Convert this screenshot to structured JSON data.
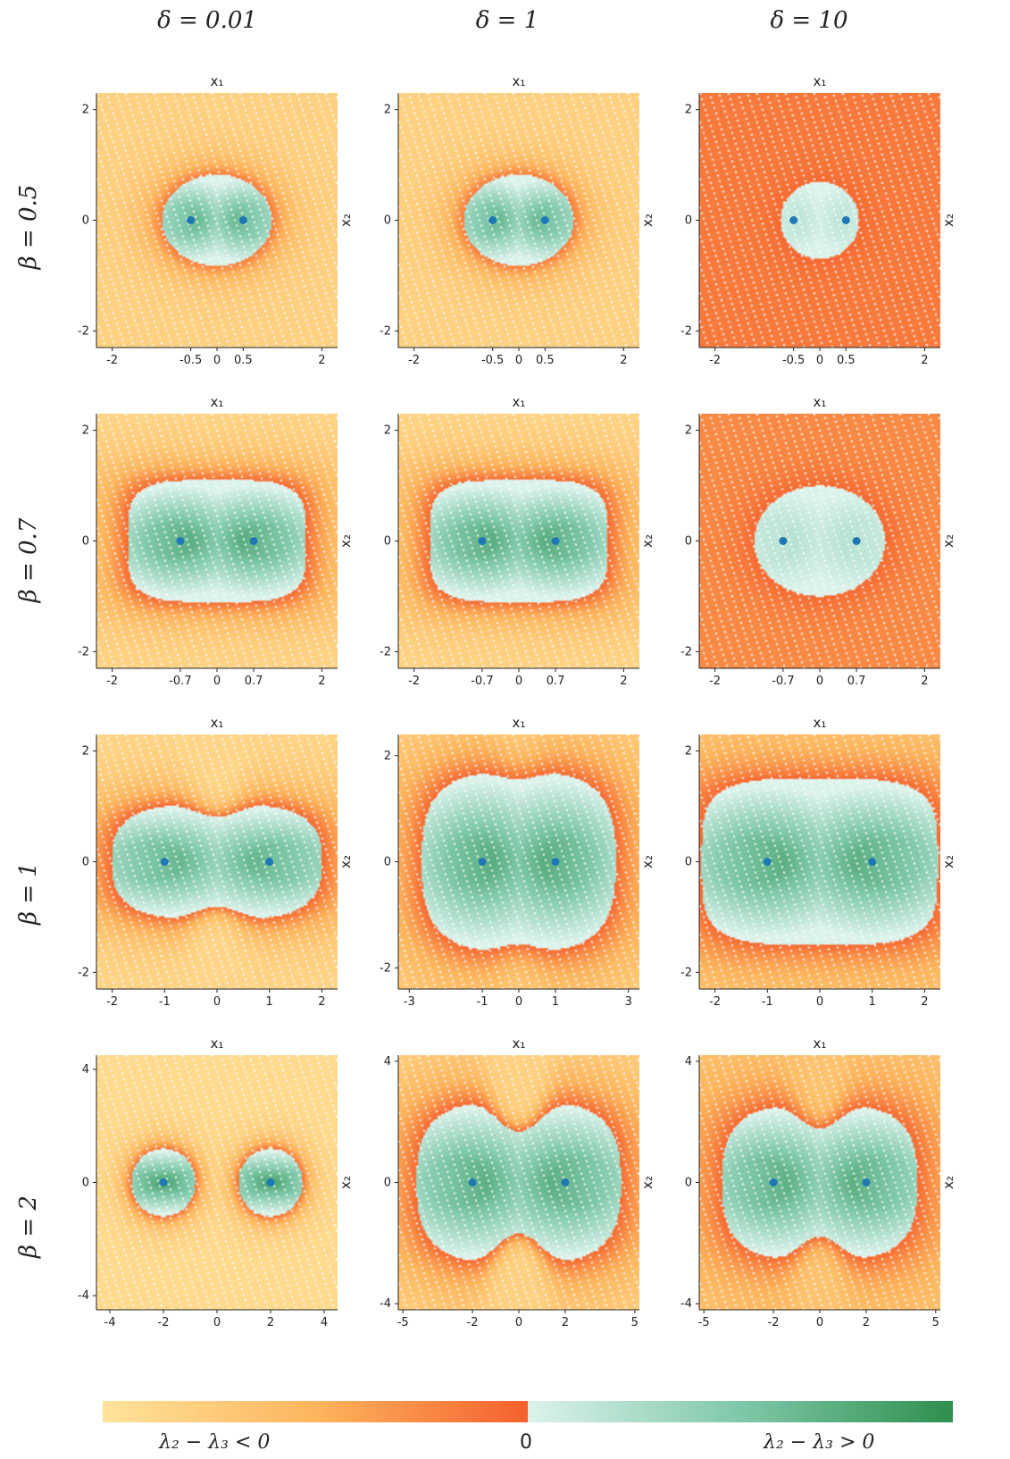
{
  "figure": {
    "column_titles": [
      "δ = 0.01",
      "δ = 1",
      "δ = 10"
    ],
    "row_titles": [
      "β = 0.5",
      "β = 0.7",
      "β = 1",
      "β = 2"
    ],
    "colorbar": {
      "left_label": "λ₂ − λ₃ < 0",
      "center_label": "0",
      "right_label": "λ₂ − λ₃ > 0",
      "negative_colors": [
        "#ffe39a",
        "#fdb55e",
        "#f4602d"
      ],
      "positive_colors": [
        "#dcf3ec",
        "#7fc8a9",
        "#2f8f4e"
      ]
    },
    "point_color": "#1f77b4"
  },
  "chart_data": [
    {
      "type": "heatmap",
      "row": "β = 0.5",
      "col": "δ = 0.01",
      "xlabel": "x₁",
      "ylabel": "x₂",
      "xlim": [
        -2.3,
        2.3
      ],
      "ylim": [
        -2.3,
        2.3
      ],
      "x_ticks": [
        -2,
        -0.5,
        0,
        0.5,
        2
      ],
      "x_tick_labels": [
        "-2",
        "-0.5",
        "0",
        "0.5",
        "2"
      ],
      "y_ticks": [
        -2,
        0,
        2
      ],
      "y_tick_labels": [
        "-2",
        "0",
        "2"
      ],
      "points": [
        [
          -0.5,
          0
        ],
        [
          0.5,
          0
        ]
      ],
      "positive_region": {
        "shape": "ellipse",
        "half_width": 1.05,
        "half_height": 0.82,
        "pinch": 0
      },
      "background_level": 0.2,
      "boundary_level": 0.85,
      "green_intensity": 0.75
    },
    {
      "type": "heatmap",
      "row": "β = 0.5",
      "col": "δ = 1",
      "xlabel": "x₁",
      "ylabel": "x₂",
      "xlim": [
        -2.3,
        2.3
      ],
      "ylim": [
        -2.3,
        2.3
      ],
      "x_ticks": [
        -2,
        -0.5,
        0,
        0.5,
        2
      ],
      "x_tick_labels": [
        "-2",
        "-0.5",
        "0",
        "0.5",
        "2"
      ],
      "y_ticks": [
        -2,
        0,
        2
      ],
      "y_tick_labels": [
        "-2",
        "0",
        "2"
      ],
      "points": [
        [
          -0.5,
          0
        ],
        [
          0.5,
          0
        ]
      ],
      "positive_region": {
        "shape": "ellipse",
        "half_width": 1.05,
        "half_height": 0.82,
        "pinch": 0
      },
      "background_level": 0.2,
      "boundary_level": 0.85,
      "green_intensity": 0.75
    },
    {
      "type": "heatmap",
      "row": "β = 0.5",
      "col": "δ = 10",
      "xlabel": "x₁",
      "ylabel": "x₂",
      "xlim": [
        -2.3,
        2.3
      ],
      "ylim": [
        -2.3,
        2.3
      ],
      "x_ticks": [
        -2,
        -0.5,
        0,
        0.5,
        2
      ],
      "x_tick_labels": [
        "-2",
        "-0.5",
        "0",
        "0.5",
        "2"
      ],
      "y_ticks": [
        -2,
        0,
        2
      ],
      "y_tick_labels": [
        "-2",
        "0",
        "2"
      ],
      "points": [
        [
          -0.5,
          0
        ],
        [
          0.5,
          0
        ]
      ],
      "positive_region": {
        "shape": "ellipse",
        "half_width": 0.75,
        "half_height": 0.7,
        "pinch": 0
      },
      "background_level": 0.85,
      "boundary_level": 0.95,
      "green_intensity": 0.2
    },
    {
      "type": "heatmap",
      "row": "β = 0.7",
      "col": "δ = 0.01",
      "xlabel": "x₁",
      "ylabel": "x₂",
      "xlim": [
        -2.3,
        2.3
      ],
      "ylim": [
        -2.3,
        2.3
      ],
      "x_ticks": [
        -2,
        -0.7,
        0,
        0.7,
        2
      ],
      "x_tick_labels": [
        "-2",
        "-0.7",
        "0",
        "0.7",
        "2"
      ],
      "y_ticks": [
        -2,
        0,
        2
      ],
      "y_tick_labels": [
        "-2",
        "0",
        "2"
      ],
      "points": [
        [
          -0.7,
          0
        ],
        [
          0.7,
          0
        ]
      ],
      "positive_region": {
        "shape": "stadium",
        "half_width": 1.7,
        "half_height": 1.1,
        "pinch": 0
      },
      "background_level": 0.15,
      "boundary_level": 0.95,
      "green_intensity": 0.85
    },
    {
      "type": "heatmap",
      "row": "β = 0.7",
      "col": "δ = 1",
      "xlabel": "x₁",
      "ylabel": "x₂",
      "xlim": [
        -2.3,
        2.3
      ],
      "ylim": [
        -2.3,
        2.3
      ],
      "x_ticks": [
        -2,
        -0.7,
        0,
        0.7,
        2
      ],
      "x_tick_labels": [
        "-2",
        "-0.7",
        "0",
        "0.7",
        "2"
      ],
      "y_ticks": [
        -2,
        0,
        2
      ],
      "y_tick_labels": [
        "-2",
        "0",
        "2"
      ],
      "points": [
        [
          -0.7,
          0
        ],
        [
          0.7,
          0
        ]
      ],
      "positive_region": {
        "shape": "stadium",
        "half_width": 1.7,
        "half_height": 1.1,
        "pinch": 0
      },
      "background_level": 0.15,
      "boundary_level": 0.95,
      "green_intensity": 0.85
    },
    {
      "type": "heatmap",
      "row": "β = 0.7",
      "col": "δ = 10",
      "xlabel": "x₁",
      "ylabel": "x₂",
      "xlim": [
        -2.3,
        2.3
      ],
      "ylim": [
        -2.3,
        2.3
      ],
      "x_ticks": [
        -2,
        -0.7,
        0,
        0.7,
        2
      ],
      "x_tick_labels": [
        "-2",
        "-0.7",
        "0",
        "0.7",
        "2"
      ],
      "y_ticks": [
        -2,
        0,
        2
      ],
      "y_tick_labels": [
        "-2",
        "0",
        "2"
      ],
      "points": [
        [
          -0.7,
          0
        ],
        [
          0.7,
          0
        ]
      ],
      "positive_region": {
        "shape": "ellipse",
        "half_width": 1.25,
        "half_height": 1.0,
        "pinch": 0
      },
      "background_level": 0.75,
      "boundary_level": 0.95,
      "green_intensity": 0.25
    },
    {
      "type": "heatmap",
      "row": "β = 1",
      "col": "δ = 0.01",
      "xlabel": "x₁",
      "ylabel": "x₂",
      "xlim": [
        -2.3,
        2.3
      ],
      "ylim": [
        -2.3,
        2.3
      ],
      "x_ticks": [
        -2,
        -1,
        0,
        1,
        2
      ],
      "x_tick_labels": [
        "-2",
        "-1",
        "0",
        "1",
        "2"
      ],
      "y_ticks": [
        -2,
        0,
        2
      ],
      "y_tick_labels": [
        "-2",
        "0",
        "2"
      ],
      "points": [
        [
          -1,
          0
        ],
        [
          1,
          0
        ]
      ],
      "positive_region": {
        "shape": "twolobe",
        "half_width": 2.0,
        "half_height": 1.05,
        "pinch": 0.3
      },
      "background_level": 0.15,
      "boundary_level": 0.95,
      "green_intensity": 0.8
    },
    {
      "type": "heatmap",
      "row": "β = 1",
      "col": "δ = 1",
      "xlabel": "x₁",
      "ylabel": "x₂",
      "xlim": [
        -3.3,
        3.3
      ],
      "ylim": [
        -2.4,
        2.4
      ],
      "x_ticks": [
        -3,
        -1,
        0,
        1,
        3
      ],
      "x_tick_labels": [
        "-3",
        "-1",
        "0",
        "1",
        "3"
      ],
      "y_ticks": [
        -2,
        0,
        2
      ],
      "y_tick_labels": [
        "-2",
        "0",
        "2"
      ],
      "points": [
        [
          -1,
          0
        ],
        [
          1,
          0
        ]
      ],
      "positive_region": {
        "shape": "twolobe",
        "half_width": 2.65,
        "half_height": 1.7,
        "pinch": 0.1
      },
      "background_level": 0.2,
      "boundary_level": 0.95,
      "green_intensity": 0.85
    },
    {
      "type": "heatmap",
      "row": "β = 1",
      "col": "δ = 10",
      "xlabel": "x₁",
      "ylabel": "x₂",
      "xlim": [
        -2.3,
        2.3
      ],
      "ylim": [
        -2.3,
        2.3
      ],
      "x_ticks": [
        -2,
        -1,
        0,
        1,
        2
      ],
      "x_tick_labels": [
        "-2",
        "-1",
        "0",
        "1",
        "2"
      ],
      "y_ticks": [
        -2,
        0,
        2
      ],
      "y_tick_labels": [
        "-2",
        "0",
        "2"
      ],
      "points": [
        [
          -1,
          0
        ],
        [
          1,
          0
        ]
      ],
      "positive_region": {
        "shape": "stadium",
        "half_width": 2.25,
        "half_height": 1.5,
        "pinch": 0.05
      },
      "background_level": 0.3,
      "boundary_level": 0.95,
      "green_intensity": 0.85
    },
    {
      "type": "heatmap",
      "row": "β = 2",
      "col": "δ = 0.01",
      "xlabel": "x₁",
      "ylabel": "x₂",
      "xlim": [
        -4.5,
        4.5
      ],
      "ylim": [
        -4.5,
        4.5
      ],
      "x_ticks": [
        -4,
        -2,
        0,
        2,
        4
      ],
      "x_tick_labels": [
        "-4",
        "-2",
        "0",
        "2",
        "4"
      ],
      "y_ticks": [
        -4,
        0,
        4
      ],
      "y_tick_labels": [
        "-4",
        "0",
        "4"
      ],
      "points": [
        [
          -2,
          0
        ],
        [
          2,
          0
        ]
      ],
      "positive_region": {
        "shape": "twocircles",
        "half_width": 3.2,
        "half_height": 1.2,
        "pinch": 0
      },
      "background_level": 0.1,
      "boundary_level": 0.9,
      "green_intensity": 0.85
    },
    {
      "type": "heatmap",
      "row": "β = 2",
      "col": "δ = 1",
      "xlabel": "x₁",
      "ylabel": "x₂",
      "xlim": [
        -5.2,
        5.2
      ],
      "ylim": [
        -4.2,
        4.2
      ],
      "x_ticks": [
        -5,
        -2,
        0,
        2,
        5
      ],
      "x_tick_labels": [
        "-5",
        "-2",
        "0",
        "2",
        "5"
      ],
      "y_ticks": [
        -4,
        0,
        4
      ],
      "y_tick_labels": [
        "-4",
        "0",
        "4"
      ],
      "points": [
        [
          -2,
          0
        ],
        [
          2,
          0
        ]
      ],
      "positive_region": {
        "shape": "twolobe",
        "half_width": 4.4,
        "half_height": 2.7,
        "pinch": 0.6
      },
      "background_level": 0.2,
      "boundary_level": 0.95,
      "green_intensity": 0.85
    },
    {
      "type": "heatmap",
      "row": "β = 2",
      "col": "δ = 10",
      "xlabel": "x₁",
      "ylabel": "x₂",
      "xlim": [
        -5.2,
        5.2
      ],
      "ylim": [
        -4.2,
        4.2
      ],
      "x_ticks": [
        -5,
        -2,
        0,
        2,
        5
      ],
      "x_tick_labels": [
        "-5",
        "-2",
        "0",
        "2",
        "5"
      ],
      "y_ticks": [
        -4,
        0,
        4
      ],
      "y_tick_labels": [
        "-4",
        "0",
        "4"
      ],
      "points": [
        [
          -2,
          0
        ],
        [
          2,
          0
        ]
      ],
      "positive_region": {
        "shape": "twolobe",
        "half_width": 4.2,
        "half_height": 2.6,
        "pinch": 0.45
      },
      "background_level": 0.35,
      "boundary_level": 0.95,
      "green_intensity": 0.85
    }
  ]
}
